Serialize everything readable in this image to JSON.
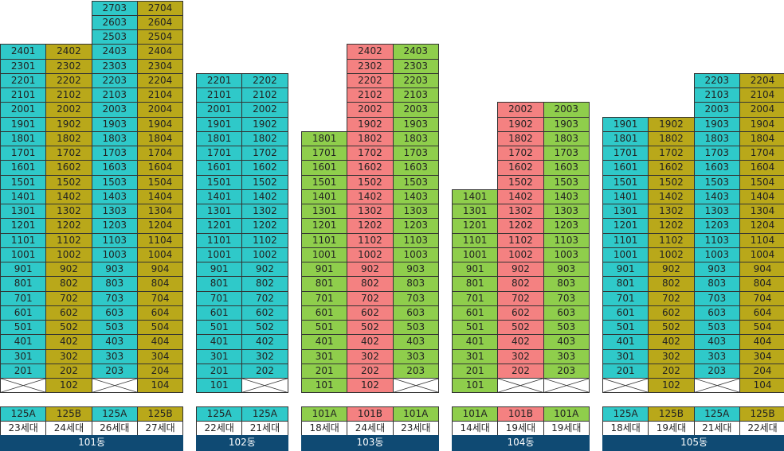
{
  "colors": {
    "cyan": "#2fc9c9",
    "olive": "#b9a81a",
    "green": "#8fce4c",
    "red": "#f48181",
    "white": "#ffffff",
    "bar": "#0f4a73"
  },
  "buildings": [
    {
      "name": "101동",
      "columns": [
        {
          "type": "125A",
          "households": "23세대",
          "color": "cyan",
          "units": [
            null,
            "201",
            "301",
            "401",
            "501",
            "601",
            "701",
            "801",
            "901",
            "1001",
            "1101",
            "1201",
            "1301",
            "1401",
            "1501",
            "1601",
            "1701",
            "1801",
            "1901",
            "2001",
            "2101",
            "2201",
            "2301",
            "2401"
          ]
        },
        {
          "type": "125B",
          "households": "24세대",
          "color": "olive",
          "units": [
            "102",
            "202",
            "302",
            "402",
            "502",
            "602",
            "702",
            "802",
            "902",
            "1002",
            "1102",
            "1202",
            "1302",
            "1402",
            "1502",
            "1602",
            "1702",
            "1802",
            "1902",
            "2002",
            "2102",
            "2202",
            "2302",
            "2402"
          ]
        },
        {
          "type": "125A",
          "households": "26세대",
          "color": "cyan",
          "units": [
            null,
            "203",
            "303",
            "403",
            "503",
            "603",
            "703",
            "803",
            "903",
            "1003",
            "1103",
            "1203",
            "1303",
            "1403",
            "1503",
            "1603",
            "1703",
            "1803",
            "1903",
            "2003",
            "2103",
            "2203",
            "2303",
            "2403",
            "2503",
            "2603",
            "2703"
          ]
        },
        {
          "type": "125B",
          "households": "27세대",
          "color": "olive",
          "units": [
            "104",
            "204",
            "304",
            "404",
            "504",
            "604",
            "704",
            "804",
            "904",
            "1004",
            "1104",
            "1204",
            "1304",
            "1404",
            "1504",
            "1604",
            "1704",
            "1804",
            "1904",
            "2004",
            "2104",
            "2204",
            "2304",
            "2404",
            "2504",
            "2604",
            "2704"
          ]
        }
      ]
    },
    {
      "name": "102동",
      "columns": [
        {
          "type": "125A",
          "households": "22세대",
          "color": "cyan",
          "units": [
            "101",
            "201",
            "301",
            "401",
            "501",
            "601",
            "701",
            "801",
            "901",
            "1001",
            "1101",
            "1201",
            "1301",
            "1401",
            "1501",
            "1601",
            "1701",
            "1801",
            "1901",
            "2001",
            "2101",
            "2201"
          ]
        },
        {
          "type": "125A",
          "households": "21세대",
          "color": "cyan",
          "units": [
            null,
            "202",
            "302",
            "402",
            "502",
            "602",
            "702",
            "802",
            "902",
            "1002",
            "1102",
            "1202",
            "1302",
            "1402",
            "1502",
            "1602",
            "1702",
            "1802",
            "1902",
            "2002",
            "2102",
            "2202"
          ]
        }
      ]
    },
    {
      "name": "103동",
      "columns": [
        {
          "type": "101A",
          "households": "18세대",
          "color": "green",
          "units": [
            "101",
            "201",
            "301",
            "401",
            "501",
            "601",
            "701",
            "801",
            "901",
            "1001",
            "1101",
            "1201",
            "1301",
            "1401",
            "1501",
            "1601",
            "1701",
            "1801"
          ]
        },
        {
          "type": "101B",
          "households": "24세대",
          "color": "red",
          "units": [
            "102",
            "202",
            "302",
            "402",
            "502",
            "602",
            "702",
            "802",
            "902",
            "1002",
            "1102",
            "1202",
            "1302",
            "1402",
            "1502",
            "1602",
            "1702",
            "1802",
            "1902",
            "2002",
            "2102",
            "2202",
            "2302",
            "2402"
          ]
        },
        {
          "type": "101A",
          "households": "23세대",
          "color": "green",
          "units": [
            null,
            "203",
            "303",
            "403",
            "503",
            "603",
            "703",
            "803",
            "903",
            "1003",
            "1103",
            "1203",
            "1303",
            "1403",
            "1503",
            "1603",
            "1703",
            "1803",
            "1903",
            "2003",
            "2103",
            "2203",
            "2303",
            "2403"
          ]
        }
      ]
    },
    {
      "name": "104동",
      "columns": [
        {
          "type": "101A",
          "households": "14세대",
          "color": "green",
          "units": [
            "101",
            "201",
            "301",
            "401",
            "501",
            "601",
            "701",
            "801",
            "901",
            "1001",
            "1101",
            "1201",
            "1301",
            "1401"
          ]
        },
        {
          "type": "101B",
          "households": "19세대",
          "color": "red",
          "units": [
            null,
            "202",
            "302",
            "402",
            "502",
            "602",
            "702",
            "802",
            "902",
            "1002",
            "1102",
            "1202",
            "1302",
            "1402",
            "1502",
            "1602",
            "1702",
            "1802",
            "1902",
            "2002"
          ]
        },
        {
          "type": "101A",
          "households": "19세대",
          "color": "green",
          "units": [
            null,
            "203",
            "303",
            "403",
            "503",
            "603",
            "703",
            "803",
            "903",
            "1003",
            "1103",
            "1203",
            "1303",
            "1403",
            "1503",
            "1603",
            "1703",
            "1803",
            "1903",
            "2003"
          ]
        }
      ]
    },
    {
      "name": "105동",
      "columns": [
        {
          "type": "125A",
          "households": "18세대",
          "color": "cyan",
          "units": [
            null,
            "201",
            "301",
            "401",
            "501",
            "601",
            "701",
            "801",
            "901",
            "1001",
            "1101",
            "1201",
            "1301",
            "1401",
            "1501",
            "1601",
            "1701",
            "1801",
            "1901"
          ]
        },
        {
          "type": "125B",
          "households": "19세대",
          "color": "olive",
          "units": [
            "102",
            "202",
            "302",
            "402",
            "502",
            "602",
            "702",
            "802",
            "902",
            "1002",
            "1102",
            "1202",
            "1302",
            "1402",
            "1502",
            "1602",
            "1702",
            "1802",
            "1902"
          ]
        },
        {
          "type": "125A",
          "households": "21세대",
          "color": "cyan",
          "units": [
            null,
            "203",
            "303",
            "403",
            "503",
            "603",
            "703",
            "803",
            "903",
            "1003",
            "1103",
            "1203",
            "1303",
            "1403",
            "1503",
            "1603",
            "1703",
            "1803",
            "1903",
            "2003",
            "2103",
            "2203"
          ]
        },
        {
          "type": "125B",
          "households": "22세대",
          "color": "olive",
          "units": [
            "104",
            "204",
            "304",
            "404",
            "504",
            "604",
            "704",
            "804",
            "904",
            "1004",
            "1104",
            "1204",
            "1304",
            "1404",
            "1504",
            "1604",
            "1704",
            "1804",
            "1904",
            "2004",
            "2104",
            "2204"
          ]
        }
      ]
    }
  ]
}
